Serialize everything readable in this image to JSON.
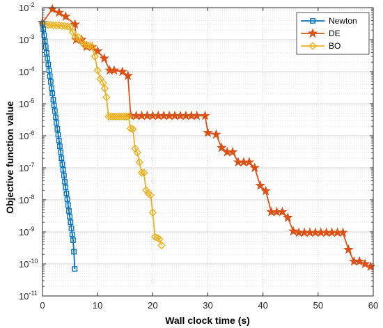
{
  "chart_data": {
    "type": "line",
    "title": "",
    "xlabel": "Wall clock time (s)",
    "ylabel": "Objective function value",
    "xlim": [
      0,
      60
    ],
    "ylim_log10": [
      -11,
      -2
    ],
    "y_scale": "log",
    "grid": true,
    "minor_grid": true,
    "legend_position": "top-right",
    "x_ticks": [
      "0",
      "10",
      "20",
      "30",
      "40",
      "50",
      "60"
    ],
    "y_ticks": [
      {
        "base": "10",
        "exp": "-11"
      },
      {
        "base": "10",
        "exp": "-10"
      },
      {
        "base": "10",
        "exp": "-9"
      },
      {
        "base": "10",
        "exp": "-8"
      },
      {
        "base": "10",
        "exp": "-7"
      },
      {
        "base": "10",
        "exp": "-6"
      },
      {
        "base": "10",
        "exp": "-5"
      },
      {
        "base": "10",
        "exp": "-4"
      },
      {
        "base": "10",
        "exp": "-3"
      },
      {
        "base": "10",
        "exp": "-2"
      }
    ],
    "series": [
      {
        "name": "Newton",
        "color": "#0072BD",
        "marker": "square",
        "x": [
          0.0,
          0.15,
          0.3,
          0.45,
          0.6,
          0.75,
          0.9,
          1.05,
          1.2,
          1.35,
          1.5,
          1.65,
          1.8,
          1.95,
          2.1,
          2.25,
          2.4,
          2.55,
          2.7,
          2.85,
          3.0,
          3.15,
          3.3,
          3.45,
          3.6,
          3.75,
          3.9,
          4.05,
          4.2,
          4.35,
          4.5,
          4.65,
          4.8,
          4.95,
          5.1,
          5.25,
          5.4,
          5.55,
          5.7,
          5.85
        ],
        "y": [
          0.0032,
          0.0021,
          0.00138,
          0.0009,
          0.00059,
          0.00039,
          0.00026,
          0.00017,
          0.00011,
          7.3e-05,
          4.8e-05,
          3.1e-05,
          2.1e-05,
          1.35e-05,
          8.9e-06,
          5.9e-06,
          3.8e-06,
          2.5e-06,
          1.65e-06,
          1.08e-06,
          7.1e-07,
          4.7e-07,
          3.1e-07,
          2e-07,
          1.3e-07,
          8.7e-08,
          5.7e-08,
          3.7e-08,
          2.45e-08,
          1.6e-08,
          1.05e-08,
          6.9e-09,
          4.5e-09,
          3e-09,
          2e-09,
          1.3e-09,
          8.4e-10,
          5.5e-10,
          2.4e-10,
          7e-11
        ]
      },
      {
        "name": "DE",
        "color": "#D95319",
        "marker": "star",
        "x": [
          0.0,
          1.8,
          3.0,
          4.2,
          5.9,
          6.1,
          7.1,
          8.0,
          9.0,
          10.0,
          11.2,
          12.2,
          13.0,
          14.5,
          15.5,
          16.0,
          17.0,
          18.0,
          19.0,
          20.0,
          21.0,
          22.0,
          23.0,
          24.0,
          25.0,
          26.0,
          27.0,
          28.0,
          29.5,
          30.0,
          31.5,
          32.5,
          33.5,
          34.5,
          35.5,
          36.5,
          37.5,
          38.5,
          39.5,
          40.5,
          41.5,
          42.5,
          43.5,
          44.5,
          45.5,
          46.5,
          47.5,
          48.5,
          49.5,
          50.5,
          51.5,
          52.5,
          53.5,
          54.5,
          55.5,
          56.5,
          57.5,
          58.5,
          59.5
        ],
        "y": [
          0.0034,
          0.009,
          0.007,
          0.0053,
          0.003,
          0.001,
          0.001,
          0.0006,
          0.0006,
          0.00044,
          0.00026,
          0.00011,
          0.00011,
          0.0001,
          7.5e-05,
          4.2e-06,
          4.2e-06,
          4.2e-06,
          4.2e-06,
          4.2e-06,
          4.2e-06,
          4.2e-06,
          4.2e-06,
          4.2e-06,
          4.2e-06,
          4.2e-06,
          4.2e-06,
          4.2e-06,
          4.2e-06,
          1.25e-06,
          1.1e-06,
          4.2e-07,
          3.1e-07,
          3.1e-07,
          1.5e-07,
          1.5e-07,
          1.5e-07,
          1e-07,
          2.8e-08,
          1.9e-08,
          4.2e-09,
          4.2e-09,
          4.2e-09,
          2.8e-09,
          1.05e-09,
          9.5e-10,
          9.5e-10,
          9.5e-10,
          9.5e-10,
          9.5e-10,
          9.5e-10,
          9.5e-10,
          9.5e-10,
          9.5e-10,
          2.8e-10,
          1.2e-10,
          1.2e-10,
          1e-10,
          8.2e-11
        ]
      },
      {
        "name": "BO",
        "color": "#EDB120",
        "marker": "diamond",
        "x": [
          0.0,
          0.5,
          1.0,
          1.5,
          2.0,
          2.5,
          3.0,
          3.5,
          4.0,
          4.5,
          5.0,
          5.5,
          6.0,
          6.5,
          7.0,
          7.5,
          8.0,
          8.5,
          9.0,
          9.5,
          10.0,
          10.5,
          11.0,
          11.3,
          11.6,
          12.0,
          12.4,
          12.8,
          13.2,
          13.6,
          14.0,
          14.4,
          14.8,
          15.2,
          15.6,
          16.0,
          16.4,
          16.8,
          17.2,
          17.6,
          18.0,
          18.4,
          18.8,
          19.2,
          19.6,
          20.0,
          20.4,
          20.8,
          21.2,
          21.6
        ],
        "y": [
          0.0032,
          0.003,
          0.0029,
          0.0029,
          0.0028,
          0.0028,
          0.0028,
          0.0027,
          0.0027,
          0.0026,
          0.0025,
          0.0017,
          0.0012,
          0.0012,
          0.0009,
          0.0007,
          0.0007,
          0.00065,
          0.0006,
          0.0003,
          0.00011,
          6e-05,
          4.5e-05,
          3e-05,
          1.6e-05,
          4e-06,
          4e-06,
          4e-06,
          4e-06,
          4e-06,
          4e-06,
          4e-06,
          4e-06,
          4e-06,
          4e-06,
          1.7e-06,
          1.6e-06,
          4e-07,
          3e-07,
          1.5e-07,
          7e-08,
          7e-08,
          2e-08,
          1.6e-08,
          1.4e-08,
          4e-09,
          7e-10,
          6.5e-10,
          6e-10,
          3.8e-10
        ]
      }
    ]
  }
}
